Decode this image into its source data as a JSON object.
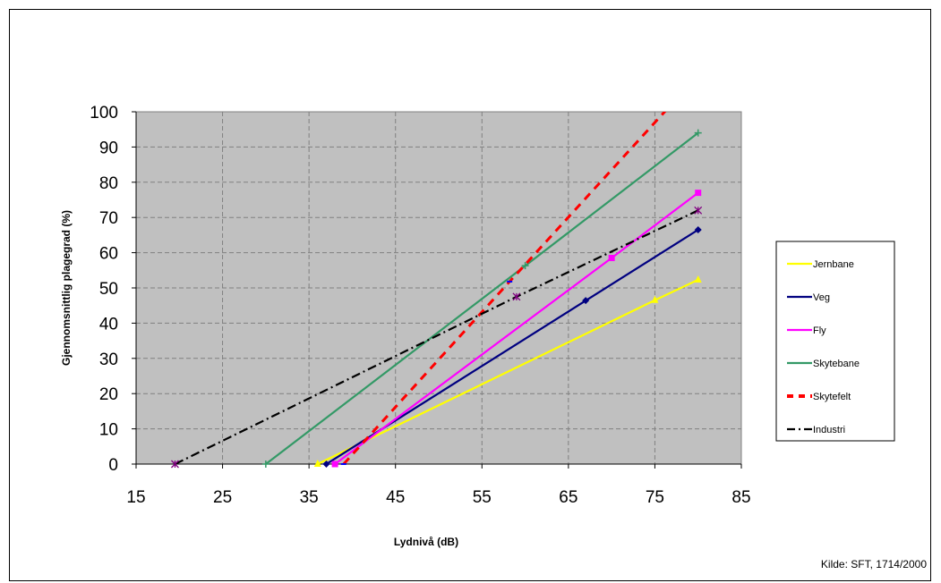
{
  "chart_data": {
    "type": "line",
    "title": "",
    "xlabel": "Lydnivå (dB)",
    "ylabel": "Gjennomsnittlig plagegrad (%)",
    "xlim": [
      15,
      85
    ],
    "ylim": [
      0,
      100
    ],
    "xticks": [
      "15",
      "25",
      "35",
      "45",
      "55",
      "65",
      "75",
      "85"
    ],
    "yticks": [
      "0",
      "10",
      "20",
      "30",
      "40",
      "50",
      "60",
      "70",
      "80",
      "90",
      "100"
    ],
    "grid": true,
    "legend_position": "right",
    "plot_background": "#c0c0c0",
    "series": [
      {
        "name": "Jernbane",
        "color": "#ffff00",
        "dash": "solid",
        "marker": "triangle",
        "x": [
          36,
          75,
          80
        ],
        "y": [
          0,
          46.5,
          52.3
        ]
      },
      {
        "name": "Veg",
        "color": "#000080",
        "dash": "solid",
        "marker": "diamond",
        "x": [
          37,
          67,
          80
        ],
        "y": [
          0,
          46.4,
          66.5
        ]
      },
      {
        "name": "Fly",
        "color": "#ff00ff",
        "dash": "solid",
        "marker": "square",
        "x": [
          38,
          70,
          80
        ],
        "y": [
          0,
          58.5,
          77
        ]
      },
      {
        "name": "Skytebane",
        "color": "#339966",
        "dash": "solid",
        "marker": "plus",
        "x": [
          30,
          60,
          80
        ],
        "y": [
          0,
          56.3,
          94
        ]
      },
      {
        "name": "Skytefelt",
        "color": "#ff0000",
        "dash": "dashed",
        "marker": "dash",
        "x": [
          39,
          58.2,
          76.5
        ],
        "y": [
          0,
          51.8,
          101
        ]
      },
      {
        "name": "Industri",
        "color": "#000000",
        "dash": "dashdot",
        "marker": "star",
        "x": [
          19.5,
          59,
          80
        ],
        "y": [
          0,
          47.5,
          72
        ]
      }
    ]
  },
  "source_text": "Kilde: SFT, 1714/2000"
}
